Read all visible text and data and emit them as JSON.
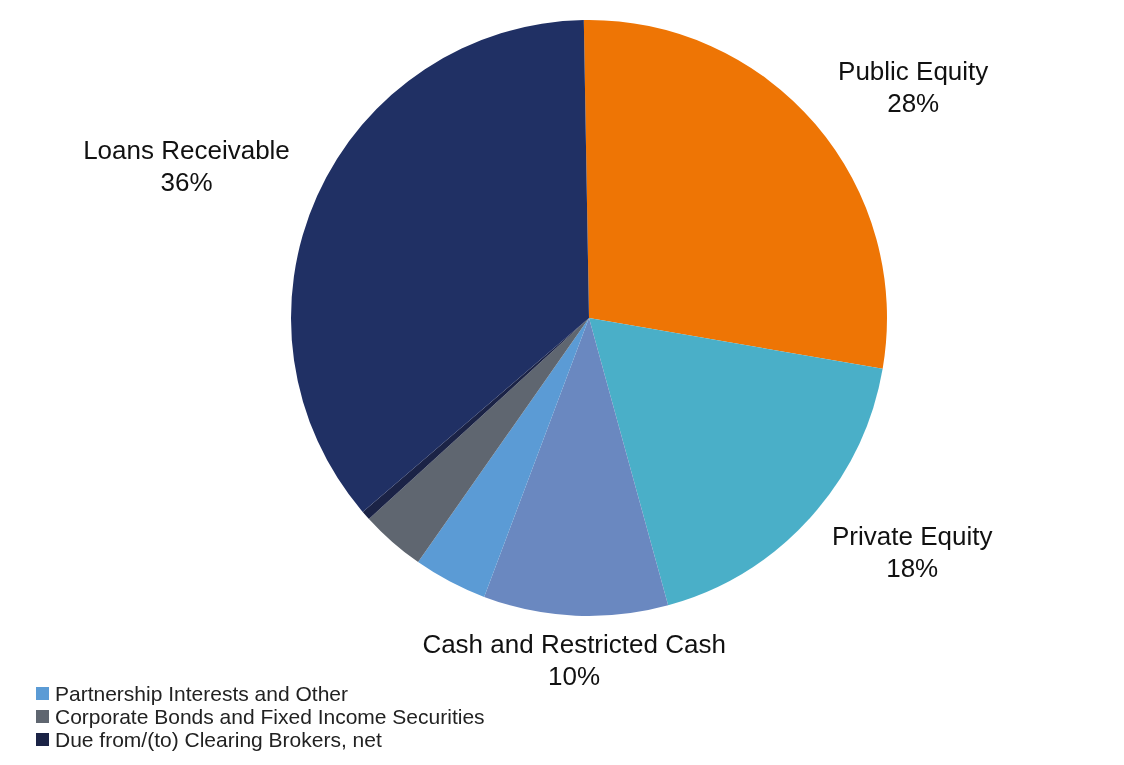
{
  "chart_data": {
    "type": "pie",
    "categories": [
      "Public Equity",
      "Private Equity",
      "Cash and Restricted Cash",
      "Partnership Interests and Other",
      "Corporate Bonds and Fixed Income Securities",
      "Due from/(to) Clearing Brokers, net",
      "Loans Receivable"
    ],
    "values": [
      28,
      18,
      10,
      4,
      3.5,
      0.5,
      36
    ],
    "value_labels": [
      "28%",
      "18%",
      "10%",
      null,
      null,
      null,
      "36%"
    ],
    "colors": [
      "#ee7505",
      "#4aafc8",
      "#6a88c0",
      "#5b9bd5",
      "#5f6670",
      "#1b2346",
      "#203064"
    ],
    "legend": "bottom left"
  }
}
